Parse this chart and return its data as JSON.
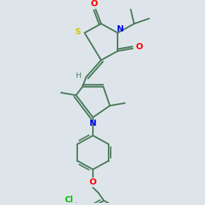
{
  "background_color": "#dde5ea",
  "bond_color": "#4a7a5a",
  "atom_colors": {
    "S": "#cccc00",
    "N": "#0000ee",
    "O": "#ff0000",
    "Cl": "#00bb00",
    "H": "#4a7a5a",
    "C": "#4a7a5a"
  },
  "figsize": [
    3.0,
    3.0
  ],
  "dpi": 100,
  "xlim": [
    0,
    300
  ],
  "ylim": [
    0,
    300
  ]
}
